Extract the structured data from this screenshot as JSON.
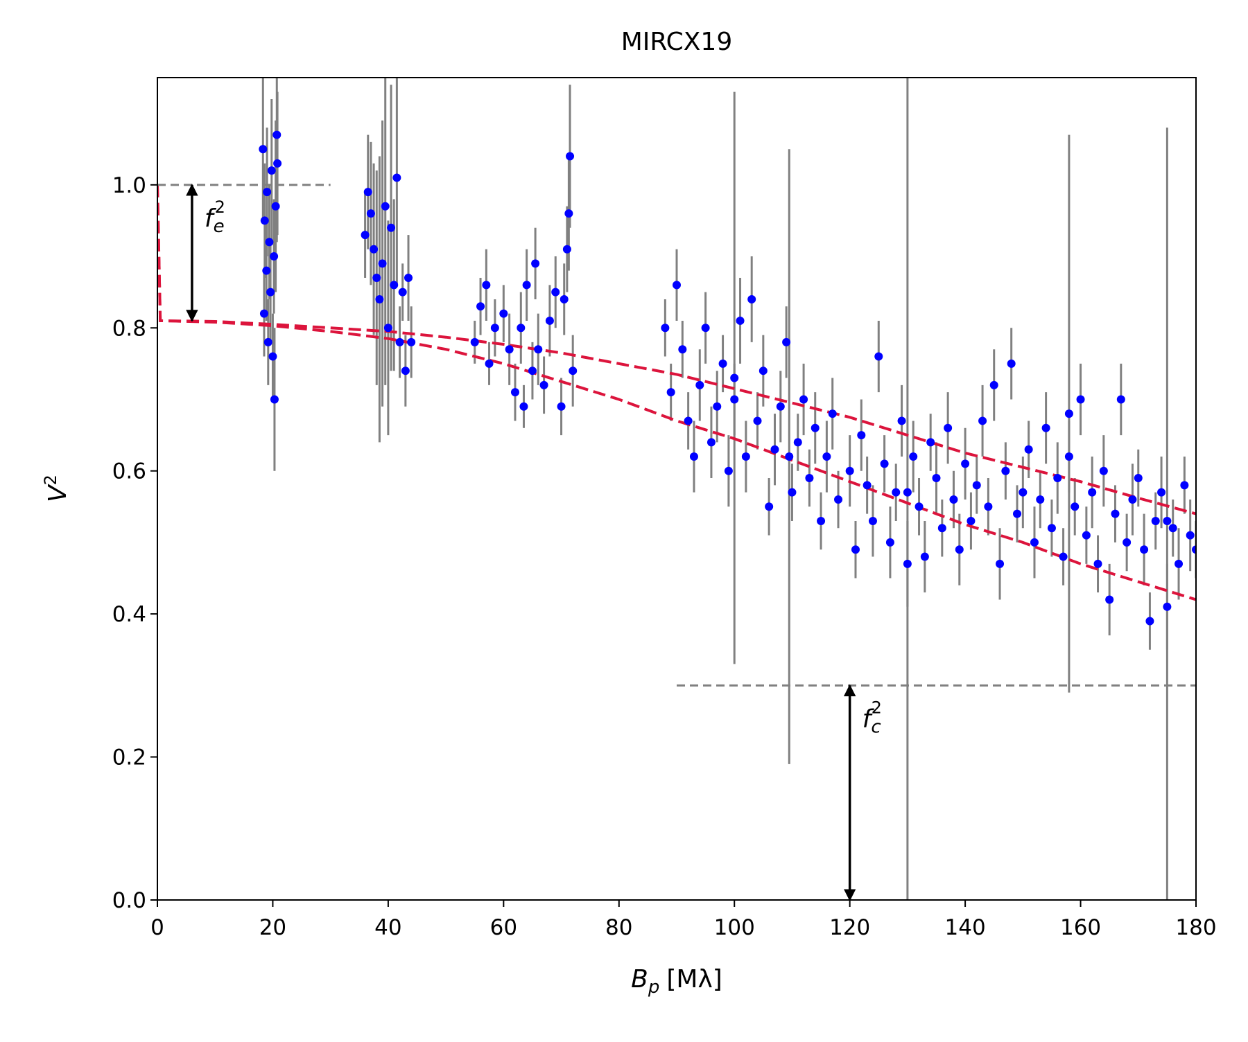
{
  "chart_data": {
    "type": "scatter",
    "title": "MIRCX19",
    "x_label": {
      "base": "B",
      "sub": "p",
      "unit": "[Mλ]"
    },
    "y_label": {
      "base": "V",
      "sup": "2"
    },
    "xlim": [
      0,
      180
    ],
    "ylim": [
      0,
      1.15
    ],
    "xticks": [
      0,
      20,
      40,
      60,
      80,
      100,
      120,
      140,
      160,
      180
    ],
    "yticks": [
      {
        "value": 0,
        "label": "0.0"
      },
      0.2,
      0.4,
      0.6,
      0.8,
      {
        "value": 1,
        "label": "1.0"
      }
    ],
    "series": [
      {
        "color": "#0000ff",
        "error_color": "#808080",
        "x": [
          18.3,
          18.6,
          18.9,
          19.2,
          19.4,
          19.6,
          19.8,
          20.0,
          20.2,
          20.3,
          20.5,
          20.7,
          20.8,
          18.5,
          19.0,
          36.0,
          36.5,
          37.0,
          37.5,
          38.0,
          38.5,
          39.0,
          39.5,
          40.0,
          40.5,
          41.0,
          41.5,
          42.0,
          42.5,
          43.0,
          43.5,
          44.0,
          55,
          56,
          57,
          57.5,
          58.5,
          60,
          61,
          62,
          63,
          63.5,
          64,
          65,
          65.5,
          66,
          67,
          68,
          69,
          70,
          70.5,
          71,
          71.3,
          71.5,
          72,
          88,
          89,
          90,
          91,
          92,
          93,
          94,
          95,
          96,
          97,
          98,
          99,
          100,
          101,
          102,
          103,
          104,
          105,
          106,
          107,
          108,
          109,
          110,
          111,
          112,
          113,
          114,
          115,
          116,
          117,
          118,
          120,
          121,
          122,
          123,
          124,
          125,
          126,
          127,
          128,
          129,
          130,
          131,
          132,
          133,
          134,
          135,
          136,
          137,
          138,
          139,
          140,
          141,
          142,
          143,
          144,
          145,
          146,
          147,
          148,
          149,
          150,
          151,
          152,
          153,
          154,
          155,
          156,
          157,
          158,
          159,
          160,
          161,
          162,
          163,
          164,
          165,
          166,
          167,
          168,
          169,
          170,
          171,
          172,
          173,
          174,
          175,
          176,
          177,
          178,
          179,
          180,
          100,
          109.5,
          130,
          158,
          175
        ],
        "values": [
          1.05,
          0.95,
          0.88,
          0.78,
          0.92,
          0.85,
          1.02,
          0.76,
          0.9,
          0.7,
          0.97,
          1.07,
          1.03,
          0.82,
          0.99,
          0.93,
          0.99,
          0.96,
          0.91,
          0.87,
          0.84,
          0.89,
          0.97,
          0.8,
          0.94,
          0.86,
          1.01,
          0.78,
          0.85,
          0.74,
          0.87,
          0.78,
          0.78,
          0.83,
          0.86,
          0.75,
          0.8,
          0.82,
          0.77,
          0.71,
          0.8,
          0.69,
          0.86,
          0.74,
          0.89,
          0.77,
          0.72,
          0.81,
          0.85,
          0.69,
          0.84,
          0.91,
          0.96,
          1.04,
          0.74,
          0.8,
          0.71,
          0.86,
          0.77,
          0.67,
          0.62,
          0.72,
          0.8,
          0.64,
          0.69,
          0.75,
          0.6,
          0.7,
          0.81,
          0.62,
          0.84,
          0.67,
          0.74,
          0.55,
          0.63,
          0.69,
          0.78,
          0.57,
          0.64,
          0.7,
          0.59,
          0.66,
          0.53,
          0.62,
          0.68,
          0.56,
          0.6,
          0.49,
          0.65,
          0.58,
          0.53,
          0.76,
          0.61,
          0.5,
          0.57,
          0.67,
          0.47,
          0.62,
          0.55,
          0.48,
          0.64,
          0.59,
          0.52,
          0.66,
          0.56,
          0.49,
          0.61,
          0.53,
          0.58,
          0.67,
          0.55,
          0.72,
          0.47,
          0.6,
          0.75,
          0.54,
          0.57,
          0.63,
          0.5,
          0.56,
          0.66,
          0.52,
          0.59,
          0.48,
          0.62,
          0.55,
          0.7,
          0.51,
          0.57,
          0.47,
          0.6,
          0.42,
          0.54,
          0.7,
          0.5,
          0.56,
          0.59,
          0.49,
          0.39,
          0.53,
          0.57,
          0.41,
          0.52,
          0.47,
          0.58,
          0.51,
          0.49,
          0.73,
          0.62,
          0.57,
          0.68,
          0.53
        ],
        "errors": [
          0.1,
          0.08,
          0.07,
          0.06,
          0.08,
          0.07,
          0.1,
          0.06,
          0.08,
          0.1,
          0.12,
          0.15,
          0.1,
          0.06,
          0.09,
          0.06,
          0.08,
          0.1,
          0.12,
          0.15,
          0.2,
          0.2,
          0.25,
          0.15,
          0.2,
          0.12,
          0.15,
          0.05,
          0.04,
          0.05,
          0.06,
          0.05,
          0.03,
          0.04,
          0.05,
          0.03,
          0.04,
          0.04,
          0.05,
          0.04,
          0.05,
          0.03,
          0.05,
          0.04,
          0.05,
          0.05,
          0.04,
          0.05,
          0.05,
          0.04,
          0.05,
          0.06,
          0.08,
          0.1,
          0.05,
          0.04,
          0.04,
          0.05,
          0.04,
          0.04,
          0.05,
          0.05,
          0.05,
          0.05,
          0.05,
          0.04,
          0.05,
          0.05,
          0.06,
          0.05,
          0.06,
          0.04,
          0.05,
          0.04,
          0.05,
          0.05,
          0.05,
          0.04,
          0.04,
          0.05,
          0.04,
          0.05,
          0.04,
          0.05,
          0.05,
          0.04,
          0.05,
          0.04,
          0.05,
          0.04,
          0.05,
          0.05,
          0.04,
          0.05,
          0.04,
          0.05,
          0.06,
          0.05,
          0.04,
          0.05,
          0.04,
          0.05,
          0.04,
          0.05,
          0.04,
          0.05,
          0.05,
          0.04,
          0.04,
          0.05,
          0.04,
          0.05,
          0.05,
          0.04,
          0.05,
          0.04,
          0.05,
          0.04,
          0.05,
          0.04,
          0.05,
          0.04,
          0.05,
          0.04,
          0.05,
          0.04,
          0.05,
          0.04,
          0.05,
          0.04,
          0.05,
          0.05,
          0.04,
          0.05,
          0.04,
          0.05,
          0.04,
          0.05,
          0.04,
          0.04,
          0.05,
          0.06,
          0.04,
          0.05,
          0.04,
          0.05,
          0.04,
          0.4,
          0.43,
          0.65,
          0.39,
          0.55
        ]
      }
    ],
    "model_curves": {
      "color": "#dc143c",
      "x": [
        0,
        0.5,
        10,
        20,
        30,
        40,
        50,
        60,
        70,
        80,
        90,
        100,
        110,
        120,
        130,
        140,
        150,
        160,
        170,
        180
      ],
      "series": [
        {
          "values": [
            1.0,
            0.81,
            0.808,
            0.803,
            0.795,
            0.785,
            0.77,
            0.75,
            0.725,
            0.7,
            0.67,
            0.645,
            0.615,
            0.585,
            0.555,
            0.525,
            0.5,
            0.47,
            0.445,
            0.42
          ]
        },
        {
          "values": [
            1.0,
            0.81,
            0.809,
            0.805,
            0.8,
            0.795,
            0.787,
            0.777,
            0.765,
            0.75,
            0.735,
            0.715,
            0.695,
            0.675,
            0.65,
            0.625,
            0.605,
            0.585,
            0.562,
            0.54
          ]
        }
      ]
    },
    "reference_lines": [
      {
        "y": 1.0,
        "x_from": 0,
        "x_to": 30,
        "color": "#808080"
      },
      {
        "y": 0.3,
        "x_from": 90,
        "x_to": 180,
        "color": "#808080"
      }
    ],
    "arrows": [
      {
        "x": 6,
        "y_from": 1.0,
        "y_to": 0.81,
        "label": {
          "base": "f",
          "sub": "e",
          "sup": "2"
        }
      },
      {
        "x": 120,
        "y_from": 0.3,
        "y_to": 0,
        "label": {
          "base": "f",
          "sub": "c",
          "sup": "2"
        }
      }
    ]
  }
}
